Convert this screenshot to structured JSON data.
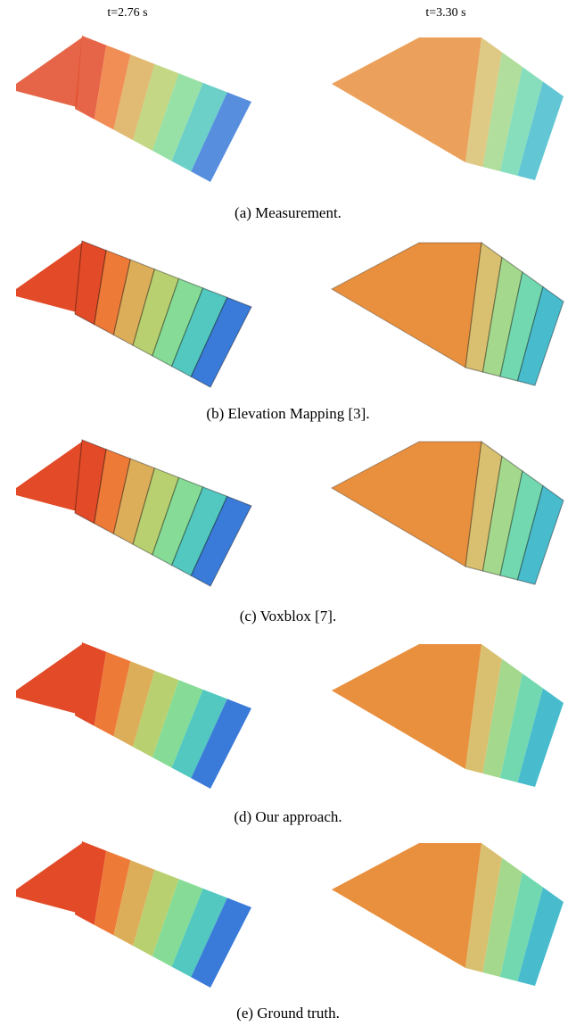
{
  "column_headers": [
    "t=2.76 s",
    "t=3.30 s"
  ],
  "panels": [
    {
      "caption": "(a) Measurement."
    },
    {
      "caption": "(b) Elevation Mapping [3]."
    },
    {
      "caption": "(c) Voxblox [7]."
    },
    {
      "caption": "(d) Our approach."
    },
    {
      "caption": "(e) Ground truth."
    }
  ]
}
